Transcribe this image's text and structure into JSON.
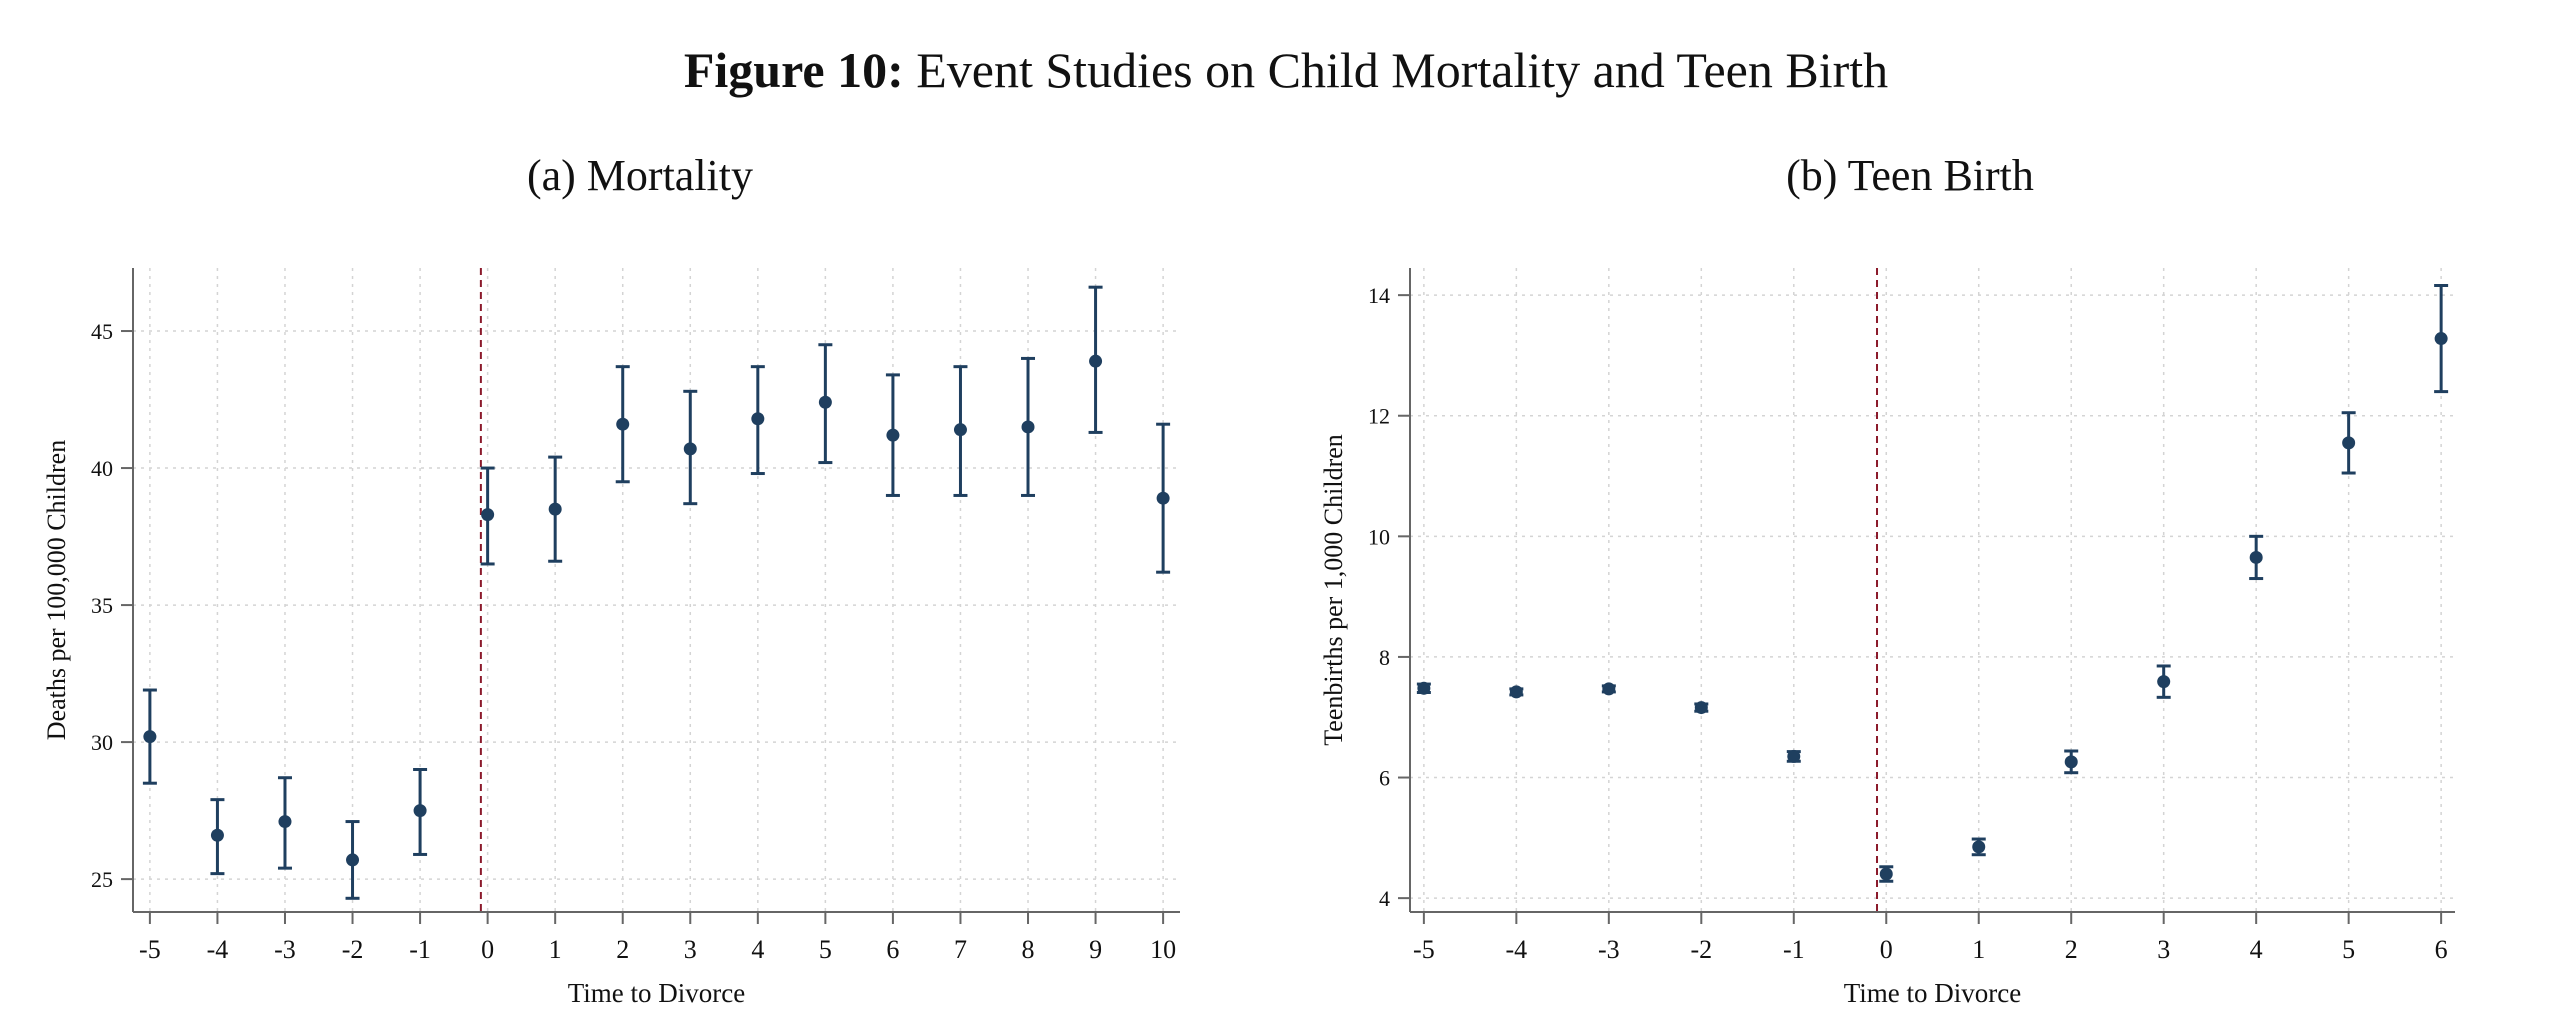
{
  "figure": {
    "label": "Figure 10:",
    "title": "Event Studies on Child Mortality and Teen Birth"
  },
  "colors": {
    "marker": "#1f3f5f",
    "event_line": "#8b1a2b",
    "grid": "#d4d4d4",
    "axis": "#666666"
  },
  "chart_data": [
    {
      "type": "scatter",
      "title": "(a) Mortality",
      "xlabel": "Time to Divorce",
      "ylabel": "Deaths per 100,000 Children",
      "x": [
        -5,
        -4,
        -3,
        -2,
        -1,
        0,
        1,
        2,
        3,
        4,
        5,
        6,
        7,
        8,
        9,
        10
      ],
      "y": [
        30.2,
        26.6,
        27.1,
        25.7,
        27.5,
        38.3,
        38.5,
        41.6,
        40.7,
        41.8,
        42.4,
        41.2,
        41.4,
        41.5,
        43.9,
        38.9
      ],
      "ci_low": [
        28.5,
        25.2,
        25.4,
        24.3,
        25.9,
        36.5,
        36.6,
        39.5,
        38.7,
        39.8,
        40.2,
        39.0,
        39.0,
        39.0,
        41.3,
        36.2
      ],
      "ci_high": [
        31.9,
        27.9,
        28.7,
        27.1,
        29.0,
        40.0,
        40.4,
        43.7,
        42.8,
        43.7,
        44.5,
        43.4,
        43.7,
        44.0,
        46.6,
        41.6
      ],
      "xticks": [
        "-5",
        "-4",
        "-3",
        "-2",
        "-1",
        "0",
        "1",
        "2",
        "3",
        "4",
        "5",
        "6",
        "7",
        "8",
        "9",
        "10"
      ],
      "yticks": [
        "25",
        "30",
        "35",
        "40",
        "45"
      ],
      "xlim": [
        -5.25,
        10.25
      ],
      "ylim": [
        23.8,
        47.3
      ],
      "event_line_x": -0.1,
      "grid": true
    },
    {
      "type": "scatter",
      "title": "(b) Teen Birth",
      "xlabel": "Time to Divorce",
      "ylabel": "Teenbirths per 1,000 Children",
      "x": [
        -5,
        -4,
        -3,
        -2,
        -1,
        0,
        1,
        2,
        3,
        4,
        5,
        6
      ],
      "y": [
        7.48,
        7.42,
        7.47,
        7.16,
        6.35,
        4.4,
        4.85,
        6.26,
        7.59,
        9.65,
        11.55,
        13.28
      ],
      "ci_low": [
        7.41,
        7.37,
        7.42,
        7.1,
        6.27,
        4.28,
        4.72,
        6.08,
        7.33,
        9.3,
        11.05,
        12.4
      ],
      "ci_high": [
        7.55,
        7.47,
        7.52,
        7.22,
        6.43,
        4.52,
        4.98,
        6.44,
        7.85,
        10.0,
        12.05,
        14.16
      ],
      "xticks": [
        "-5",
        "-4",
        "-3",
        "-2",
        "-1",
        "0",
        "1",
        "2",
        "3",
        "4",
        "5",
        "6"
      ],
      "yticks": [
        "4",
        "6",
        "8",
        "10",
        "12",
        "14"
      ],
      "xlim": [
        -5.15,
        6.15
      ],
      "ylim": [
        3.77,
        14.45
      ],
      "event_line_x": -0.1,
      "grid": true
    }
  ]
}
